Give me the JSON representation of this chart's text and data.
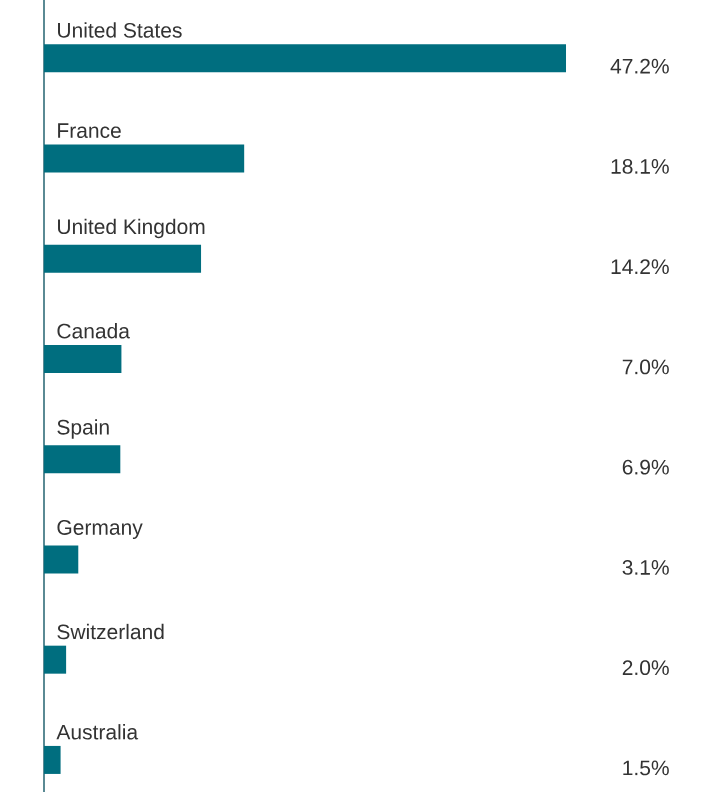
{
  "chart_data": {
    "type": "bar",
    "orientation": "horizontal",
    "categories": [
      "United States",
      "France",
      "United Kingdom",
      "Canada",
      "Spain",
      "Germany",
      "Switzerland",
      "Australia"
    ],
    "values": [
      47.2,
      18.1,
      14.2,
      7.0,
      6.9,
      3.1,
      2.0,
      1.5
    ],
    "value_labels": [
      "47.2%",
      "18.1%",
      "14.2%",
      "7.0%",
      "6.9%",
      "3.1%",
      "2.0%",
      "1.5%"
    ],
    "color": "#006e7f"
  }
}
